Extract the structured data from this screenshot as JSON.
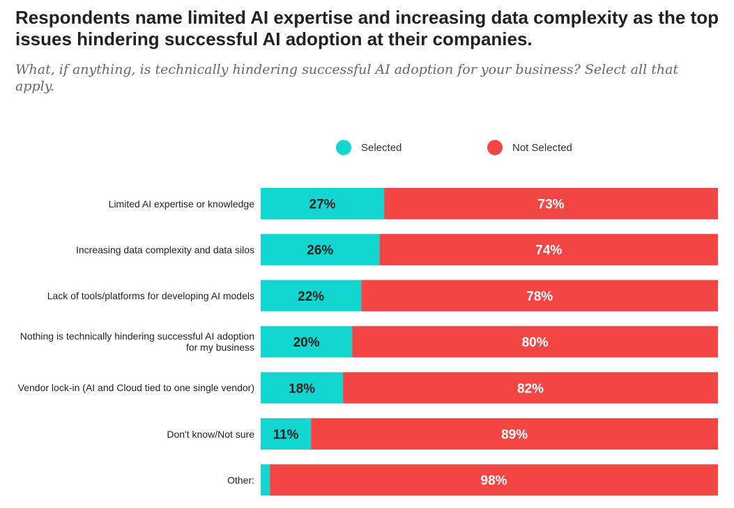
{
  "header": {
    "title": "Respondents name limited AI expertise and increasing data complexity as the top issues hindering successful AI adoption at their companies.",
    "subtitle": "What, if anything, is technically hindering successful AI adoption for your business? Select all that apply."
  },
  "legend": [
    {
      "label": "Selected",
      "color": "#12d6cf"
    },
    {
      "label": "Not Selected",
      "color": "#f44545"
    }
  ],
  "chart_data": {
    "type": "bar",
    "orientation": "horizontal",
    "stacked": true,
    "categories": [
      "Limited AI expertise or knowledge",
      "Increasing data complexity and data silos",
      "Lack of tools/platforms for developing AI models",
      "Nothing is technically hindering successful AI adoption for my business",
      "Vendor lock-in (AI and Cloud tied to one single vendor)",
      "Don't know/Not sure",
      "Other:"
    ],
    "series": [
      {
        "name": "Selected",
        "color": "#12d6cf",
        "values": [
          27,
          26,
          22,
          20,
          18,
          11,
          2
        ],
        "labels": [
          "27%",
          "26%",
          "22%",
          "20%",
          "18%",
          "11%",
          ""
        ],
        "label_color": "#222222"
      },
      {
        "name": "Not Selected",
        "color": "#f44545",
        "values": [
          73,
          74,
          78,
          80,
          82,
          89,
          98
        ],
        "labels": [
          "73%",
          "74%",
          "78%",
          "80%",
          "82%",
          "89%",
          "98%"
        ],
        "label_color": "#ffffff"
      }
    ],
    "xlim": [
      0,
      100
    ],
    "legend_position": "top",
    "grid": false
  }
}
